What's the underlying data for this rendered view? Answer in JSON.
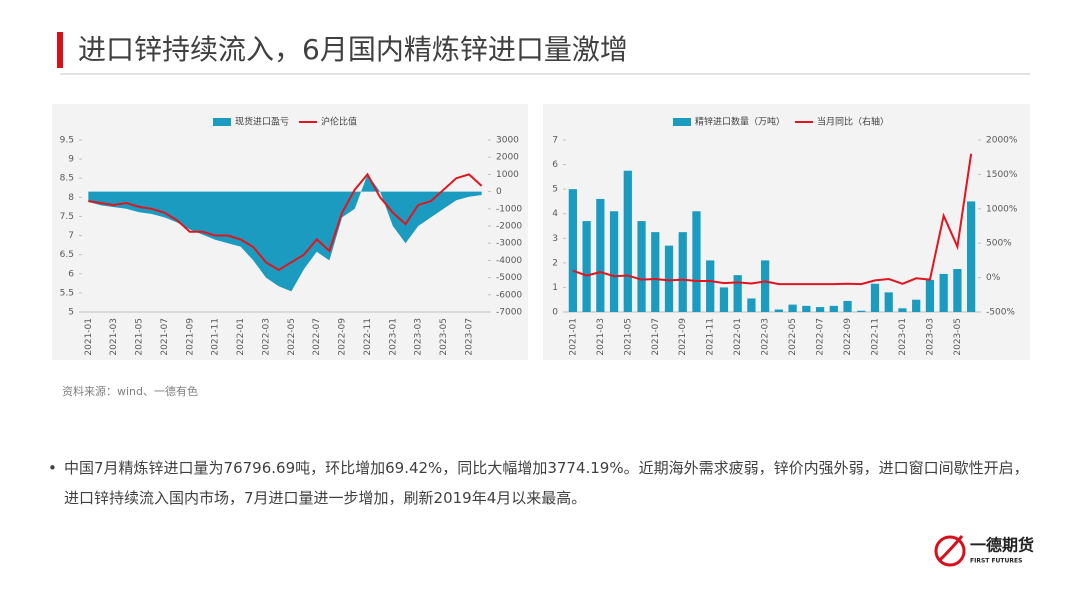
{
  "header": {
    "title": "进口锌持续流入，6月国内精炼锌进口量激增"
  },
  "chart_data": [
    {
      "type": "line",
      "categories": [
        "2021-01",
        null,
        "2021-03",
        null,
        "2021-05",
        null,
        "2021-07",
        null,
        "2021-09",
        null,
        "2021-11",
        null,
        "2022-01",
        null,
        "2022-03",
        null,
        "2022-05",
        null,
        "2022-07",
        null,
        "2022-09",
        null,
        "2022-11",
        null,
        "2023-01",
        null,
        "2023-03",
        null,
        "2023-05",
        null,
        "2023-07",
        null
      ],
      "series": [
        {
          "name": "现货进口盈亏",
          "type": "area",
          "axis": "y2",
          "color": "#1a9bbf",
          "values": [
            -600,
            -800,
            -900,
            -1000,
            -1200,
            -1300,
            -1500,
            -1800,
            -2200,
            -2500,
            -2800,
            -3000,
            -3200,
            -4000,
            -5000,
            -5500,
            -5800,
            -4500,
            -3500,
            -4000,
            -1500,
            -1000,
            1000,
            0,
            -2000,
            -3000,
            -2000,
            -1500,
            -1000,
            -500,
            -300,
            -200
          ]
        },
        {
          "name": "沪伦比值",
          "type": "line",
          "color": "#e0151f",
          "values": [
            7.9,
            7.85,
            7.8,
            7.85,
            7.75,
            7.7,
            7.6,
            7.4,
            7.1,
            7.1,
            7.0,
            7.0,
            6.9,
            6.7,
            6.3,
            6.1,
            6.3,
            6.5,
            6.9,
            6.6,
            7.6,
            8.2,
            8.6,
            8.0,
            7.6,
            7.3,
            7.8,
            7.9,
            8.2,
            8.5,
            8.6,
            8.3
          ]
        }
      ],
      "ylim": [
        5,
        9.5
      ],
      "yticks": [
        5,
        5.5,
        6,
        6.5,
        7,
        7.5,
        8,
        8.5,
        9,
        9.5
      ],
      "y2lim": [
        -7000,
        3000
      ],
      "y2ticks": [
        -7000,
        -6000,
        -5000,
        -4000,
        -3000,
        -2000,
        -1000,
        0,
        1000,
        2000,
        3000
      ]
    },
    {
      "type": "bar",
      "categories": [
        "2021-01",
        null,
        "2021-03",
        null,
        "2021-05",
        null,
        "2021-07",
        null,
        "2021-09",
        null,
        "2021-11",
        null,
        "2022-01",
        null,
        "2022-03",
        null,
        "2022-05",
        null,
        "2022-07",
        null,
        "2022-09",
        null,
        "2022-11",
        null,
        "2023-01",
        null,
        "2023-03",
        null,
        "2023-05",
        null
      ],
      "series": [
        {
          "name": "精锌进口数量（万吨）",
          "type": "bar",
          "color": "#1a9bbf",
          "values": [
            5.0,
            3.7,
            4.6,
            4.1,
            5.75,
            3.7,
            3.25,
            2.7,
            3.25,
            4.1,
            2.1,
            1.0,
            1.5,
            0.55,
            2.1,
            0.1,
            0.3,
            0.25,
            0.2,
            0.25,
            0.45,
            0.05,
            1.15,
            0.8,
            0.15,
            0.5,
            1.3,
            1.55,
            1.75,
            4.5
          ]
        },
        {
          "name": "当月同比（右轴）",
          "type": "line",
          "axis": "y2",
          "color": "#e0151f",
          "values": [
            100,
            30,
            80,
            20,
            30,
            -30,
            -20,
            -40,
            -30,
            -50,
            -50,
            -80,
            -70,
            -85,
            -55,
            -95,
            -95,
            -95,
            -95,
            -95,
            -90,
            -95,
            -40,
            -20,
            -90,
            -10,
            -30,
            900,
            450,
            1800
          ]
        }
      ],
      "ylim": [
        0,
        7
      ],
      "yticks": [
        0,
        1,
        2,
        3,
        4,
        5,
        6,
        7
      ],
      "y2lim": [
        -500,
        2000
      ],
      "y2ticks": [
        {
          "value": -500,
          "label": "-500%"
        },
        {
          "value": 0,
          "label": "0%"
        },
        {
          "value": 500,
          "label": "500%"
        },
        {
          "value": 1000,
          "label": "1000%"
        },
        {
          "value": 1500,
          "label": "1500%"
        },
        {
          "value": 2000,
          "label": "2000%"
        }
      ]
    }
  ],
  "source": "资料来源：wind、一德有色",
  "bullet": "中国7月精炼锌进口量为76796.69吨，环比增加69.42%，同比大幅增加3774.19%。近期海外需求疲弱，锌价内强外弱，进口窗口间歇性开启，进口锌持续流入国内市场，7月进口量进一步增加，刷新2019年4月以来最高。",
  "logo": {
    "name": "一德期货",
    "subtitle": "FIRST FUTURES"
  }
}
